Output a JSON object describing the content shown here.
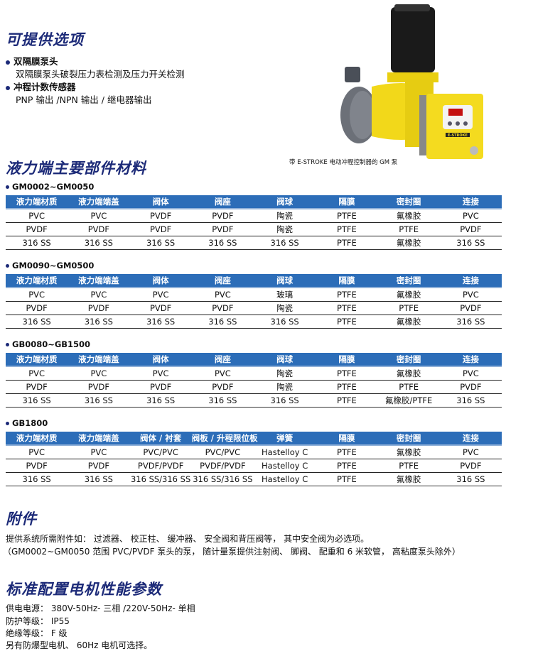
{
  "options": {
    "title": "可提供选项",
    "items": [
      {
        "label": "双隔膜泵头",
        "desc": "双隔膜泵头破裂压力表检测及压力开关检测"
      },
      {
        "label": "冲程计数传感器",
        "desc": "PNP 输出 /NPN 输出 / 继电器输出"
      }
    ]
  },
  "image": {
    "caption": "带 E-STROKE 电动冲程控制器的 GM 泵",
    "logo_text": "E-STROKE"
  },
  "materials": {
    "title": "液力端主要部件材料",
    "tables": [
      {
        "name": "GM0002~GM0050",
        "headers": [
          "液力端材质",
          "液力端端盖",
          "阀体",
          "阀座",
          "阀球",
          "隔膜",
          "密封圈",
          "连接"
        ],
        "rows": [
          [
            "PVC",
            "PVC",
            "PVDF",
            "PVDF",
            "陶瓷",
            "PTFE",
            "氟橡胶",
            "PVC"
          ],
          [
            "PVDF",
            "PVDF",
            "PVDF",
            "PVDF",
            "陶瓷",
            "PTFE",
            "PTFE",
            "PVDF"
          ],
          [
            "316 SS",
            "316 SS",
            "316 SS",
            "316 SS",
            "316 SS",
            "PTFE",
            "氟橡胶",
            "316 SS"
          ]
        ]
      },
      {
        "name": "GM0090~GM0500",
        "headers": [
          "液力端材质",
          "液力端端盖",
          "阀体",
          "阀座",
          "阀球",
          "隔膜",
          "密封圈",
          "连接"
        ],
        "rows": [
          [
            "PVC",
            "PVC",
            "PVC",
            "PVC",
            "玻璃",
            "PTFE",
            "氟橡胶",
            "PVC"
          ],
          [
            "PVDF",
            "PVDF",
            "PVDF",
            "PVDF",
            "陶瓷",
            "PTFE",
            "PTFE",
            "PVDF"
          ],
          [
            "316 SS",
            "316 SS",
            "316 SS",
            "316 SS",
            "316 SS",
            "PTFE",
            "氟橡胶",
            "316 SS"
          ]
        ]
      },
      {
        "name": "GB0080~GB1500",
        "headers": [
          "液力端材质",
          "液力端端盖",
          "阀体",
          "阀座",
          "阀球",
          "隔膜",
          "密封圈",
          "连接"
        ],
        "rows": [
          [
            "PVC",
            "PVC",
            "PVC",
            "PVC",
            "陶瓷",
            "PTFE",
            "氟橡胶",
            "PVC"
          ],
          [
            "PVDF",
            "PVDF",
            "PVDF",
            "PVDF",
            "陶瓷",
            "PTFE",
            "PTFE",
            "PVDF"
          ],
          [
            "316 SS",
            "316 SS",
            "316 SS",
            "316 SS",
            "316 SS",
            "PTFE",
            "氟橡胶/PTFE",
            "316 SS"
          ]
        ]
      },
      {
        "name": "GB1800",
        "headers": [
          "液力端材质",
          "液力端端盖",
          "阀体 / 衬套",
          "阀板 / 升程限位板",
          "弹簧",
          "隔膜",
          "密封圈",
          "连接"
        ],
        "rows": [
          [
            "PVC",
            "PVC",
            "PVC/PVC",
            "PVC/PVC",
            "Hastelloy C",
            "PTFE",
            "氟橡胶",
            "PVC"
          ],
          [
            "PVDF",
            "PVDF",
            "PVDF/PVDF",
            "PVDF/PVDF",
            "Hastelloy C",
            "PTFE",
            "PTFE",
            "PVDF"
          ],
          [
            "316 SS",
            "316 SS",
            "316 SS/316 SS",
            "316 SS/316 SS",
            "Hastelloy C",
            "PTFE",
            "氟橡胶",
            "316 SS"
          ]
        ]
      }
    ]
  },
  "accessories": {
    "title": "附件",
    "lines": [
      "提供系统所需附件如： 过滤器、 校正柱、 缓冲器、 安全阀和背压阀等， 其中安全阀为必选项。",
      "（GM0002~GM0050 范围 PVC/PVDF 泵头的泵， 随计量泵提供注射阀、 脚阀、 配重和 6 米软管， 高粘度泵头除外）"
    ]
  },
  "motor": {
    "title": "标准配置电机性能参数",
    "lines": [
      "供电电源： 380V-50Hz- 三相 /220V-50Hz- 单相",
      "防护等级： IP55",
      "绝缘等级： F 级",
      "另有防爆型电机、 60Hz 电机可选择。"
    ]
  },
  "colors": {
    "heading": "#1c2a78",
    "table_header": "#2c6db8",
    "pump_yellow": "#f2d81a"
  }
}
